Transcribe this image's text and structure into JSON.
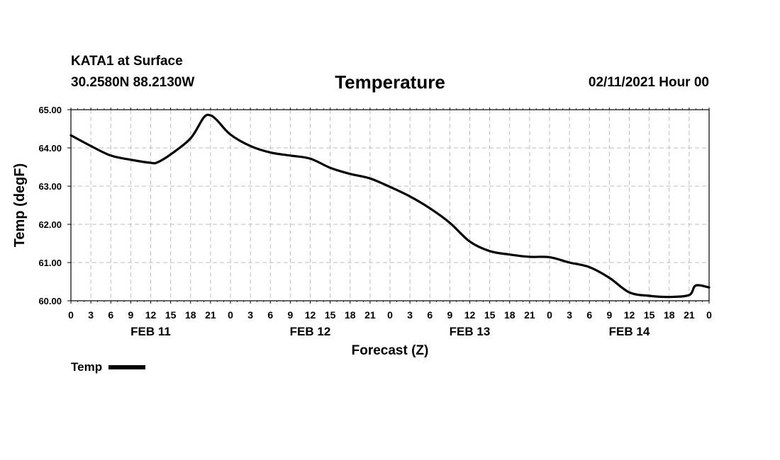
{
  "header": {
    "station": "KATA1 at Surface",
    "coords": "30.2580N 88.2130W",
    "title": "Temperature",
    "datetime": "02/11/2021 Hour 00"
  },
  "legend": {
    "label": "Temp",
    "color": "#000000"
  },
  "chart_data": {
    "type": "line",
    "title": "Temperature",
    "xlabel": "Forecast (Z)",
    "ylabel": "Temp (degF)",
    "ylim": [
      60,
      65
    ],
    "xlim": [
      0,
      96
    ],
    "x_unit": "forecast hour",
    "grid": true,
    "y_ticks": [
      "60.00",
      "61.00",
      "62.00",
      "63.00",
      "64.00",
      "65.00"
    ],
    "x_tick_labels": [
      "0",
      "3",
      "6",
      "9",
      "12",
      "15",
      "18",
      "21",
      "0",
      "3",
      "6",
      "9",
      "12",
      "15",
      "18",
      "21",
      "0",
      "3",
      "6",
      "9",
      "12",
      "15",
      "18",
      "21",
      "0",
      "3",
      "6",
      "9",
      "12",
      "15",
      "18",
      "21",
      "0"
    ],
    "day_labels": [
      {
        "label": "FEB 11",
        "hour": 12
      },
      {
        "label": "FEB 12",
        "hour": 36
      },
      {
        "label": "FEB 13",
        "hour": 60
      },
      {
        "label": "FEB 14",
        "hour": 84
      }
    ],
    "series": [
      {
        "name": "Temp",
        "color": "#000000",
        "x": [
          0,
          3,
          6,
          9,
          12,
          13,
          15,
          18,
          20,
          21,
          22,
          24,
          27,
          30,
          33,
          36,
          39,
          42,
          45,
          48,
          51,
          54,
          57,
          60,
          63,
          66,
          69,
          72,
          75,
          78,
          81,
          84,
          87,
          90,
          93,
          94,
          96
        ],
        "values": [
          64.33,
          64.05,
          63.8,
          63.69,
          63.61,
          63.62,
          63.83,
          64.25,
          64.8,
          64.85,
          64.72,
          64.35,
          64.05,
          63.88,
          63.8,
          63.72,
          63.48,
          63.32,
          63.2,
          62.98,
          62.73,
          62.42,
          62.04,
          61.55,
          61.3,
          61.21,
          61.15,
          61.14,
          61.0,
          60.88,
          60.6,
          60.22,
          60.13,
          60.1,
          60.15,
          60.4,
          60.35
        ]
      }
    ]
  }
}
